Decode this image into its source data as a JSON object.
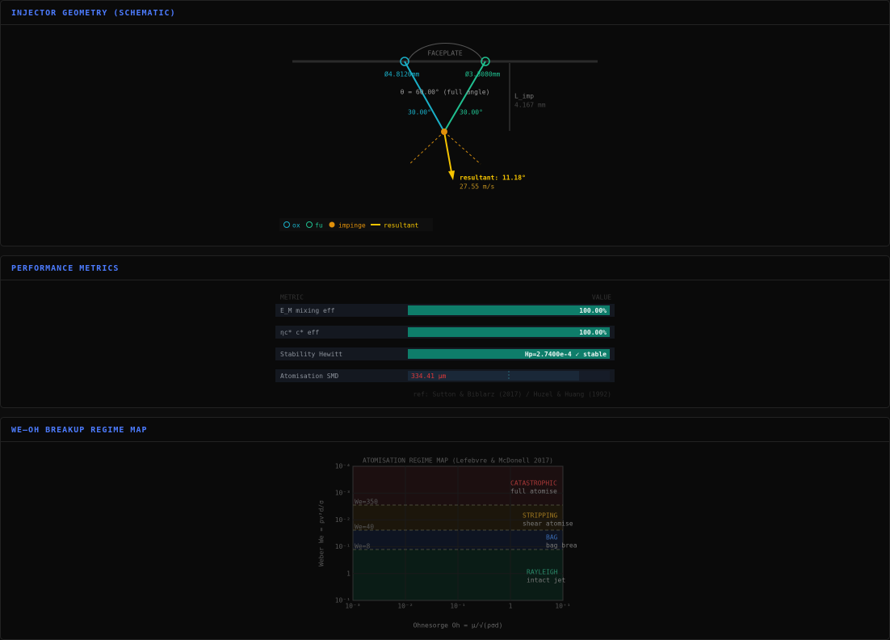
{
  "geometry": {
    "title": "INJECTOR GEOMETRY (SCHEMATIC)",
    "faceplate": "FACEPLATE",
    "ox_diameter": "Ø4.8120mm",
    "fu_diameter": "Ø3.3080mm",
    "full_angle": "θ = 60.00° (full angle)",
    "ox_angle": "30.00°",
    "fu_angle": "30.00°",
    "l_imp_label": "L_imp",
    "l_imp_value": "4.167 mm",
    "resultant": "resultant: 11.18°",
    "velocity": "27.55 m/s",
    "legend": [
      "ox",
      "fu",
      "impinge",
      "resultant"
    ]
  },
  "performance": {
    "title": "PERFORMANCE METRICS",
    "header": [
      "METRIC",
      "VALUE"
    ],
    "rows": [
      {
        "metric": "E_M  mixing eff",
        "value": "100.00%"
      },
      {
        "metric": "ηc*  c* eff",
        "value": "100.00%"
      },
      {
        "metric": "Stability  Hewitt",
        "value": "Hp=2.7400e-4  ✓ stable"
      },
      {
        "metric": "Atomisation  SMD",
        "value": "334.41 μm"
      }
    ],
    "ref": "ref: Sutton & Biblarz (2017) / Huzel & Huang (1992)"
  },
  "regime_map": {
    "title": "WE–OH BREAKUP REGIME MAP",
    "chart_title": "ATOMISATION REGIME MAP  (Lefebvre & McDonell 2017)",
    "y_label": "Weber  We = ρv²d/σ",
    "x_label": "Ohnesorge  Oh = μ/√(ρσd)",
    "y_ticks": [
      "10⁻⁴",
      "10⁻³",
      "10⁻²",
      "10⁻¹",
      "1",
      "10⁻¹"
    ],
    "x_ticks": [
      "10⁻³",
      "10⁻²",
      "10⁻¹",
      "1",
      "10⁺¹"
    ],
    "thresholds": [
      "We=350",
      "We=40",
      "We=8"
    ],
    "regimes": [
      {
        "name": "CATASTROPHIC",
        "desc": "full atomise"
      },
      {
        "name": "STRIPPING",
        "desc": "shear atomise"
      },
      {
        "name": "BAG",
        "desc": "bag brea"
      },
      {
        "name": "RAYLEIGH",
        "desc": "intact jet"
      }
    ]
  }
}
